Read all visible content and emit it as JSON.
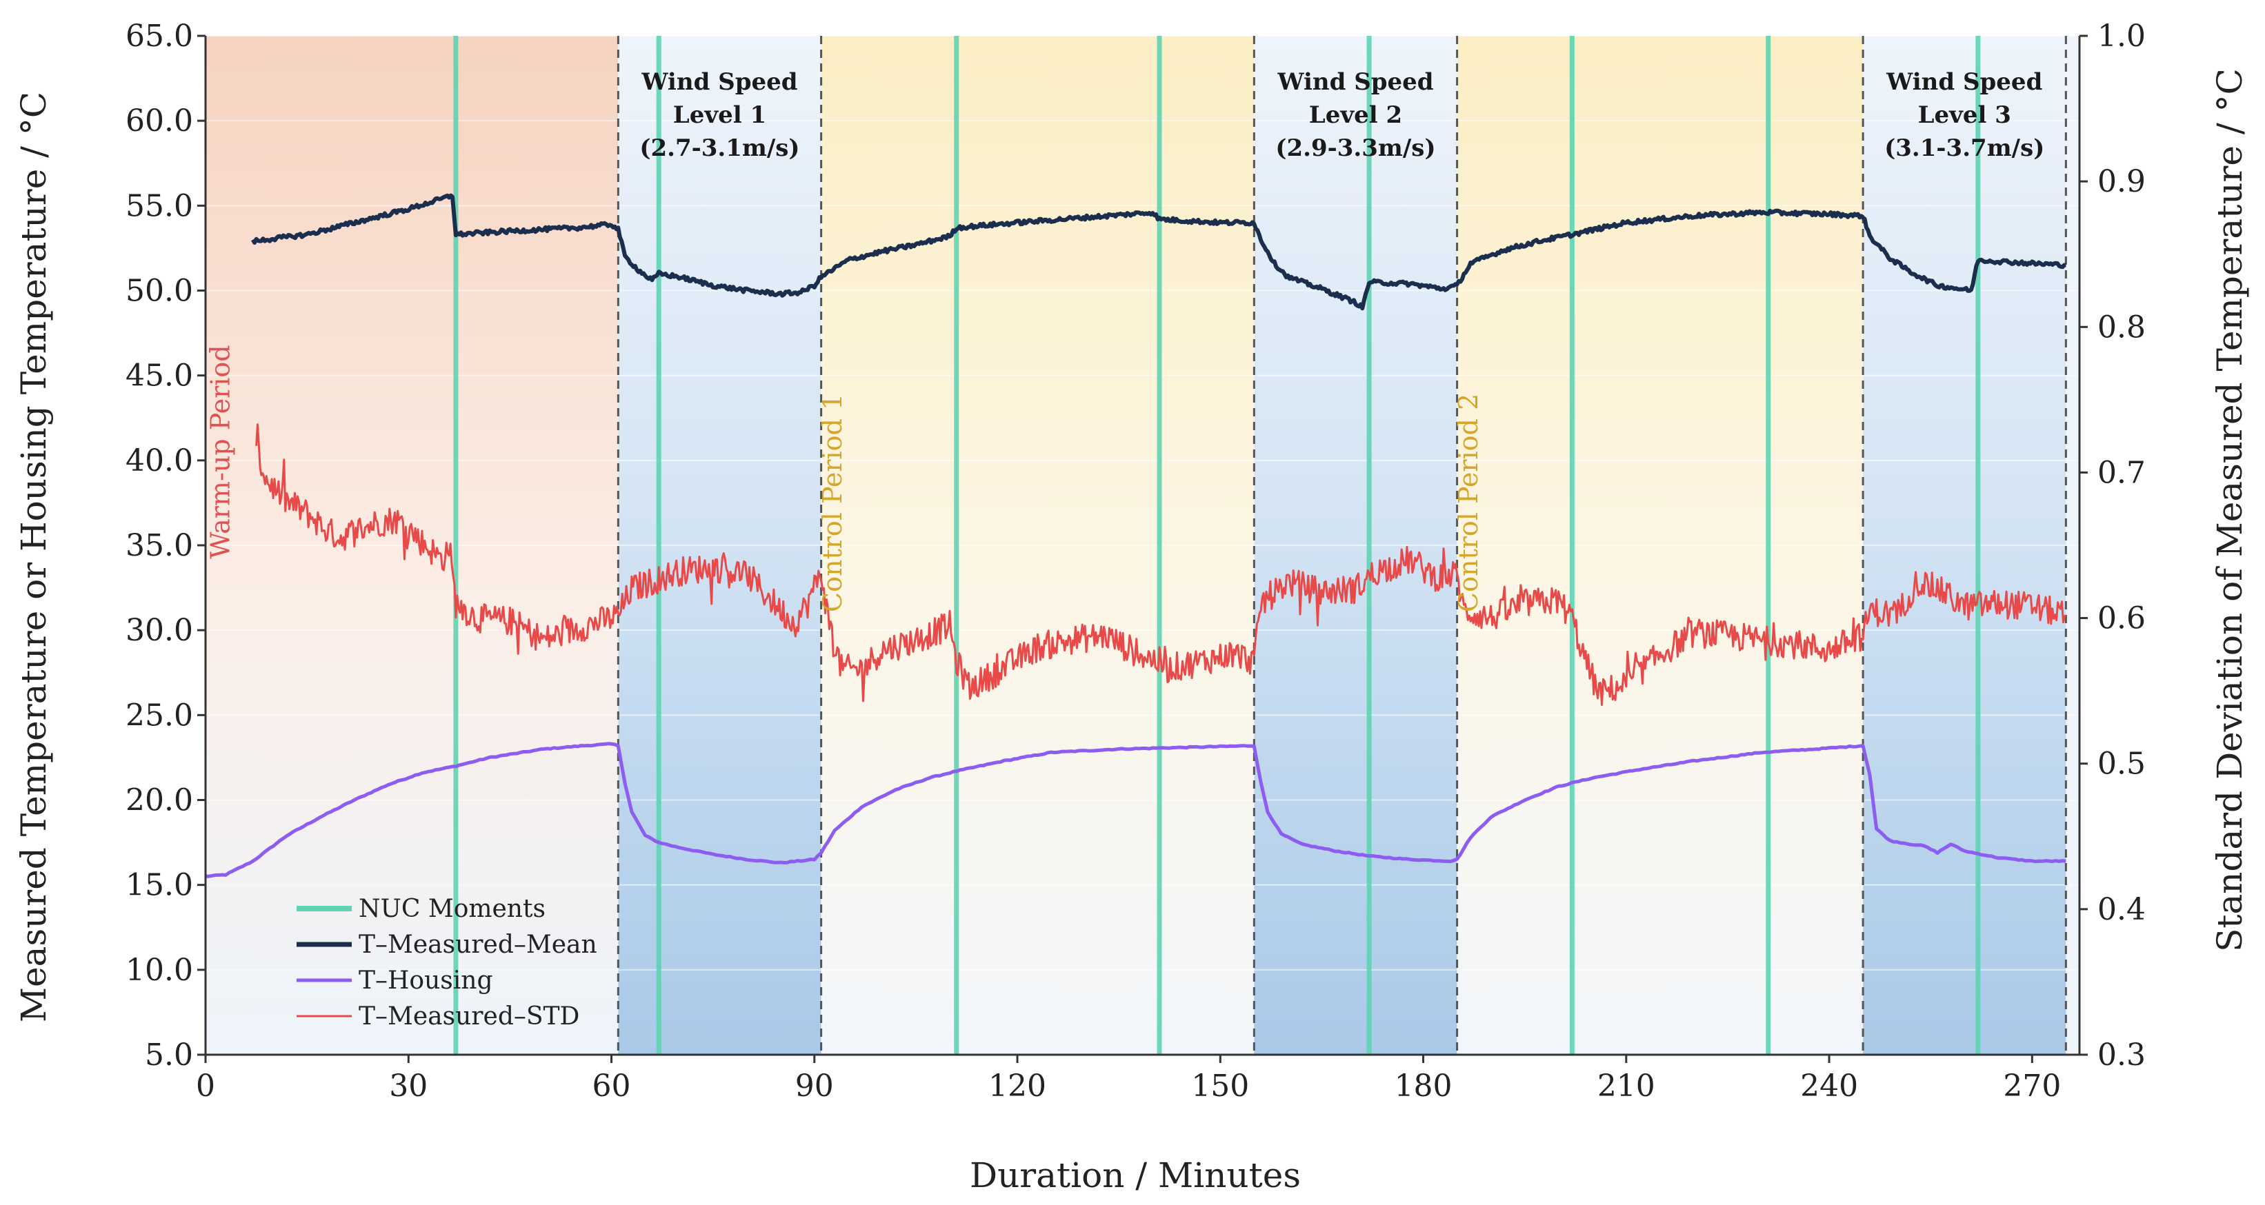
{
  "chart_data": {
    "type": "line",
    "xlabel": "Duration / Minutes",
    "ylabel_left": "Measured Temperature or Housing Temperature / °C",
    "ylabel_right": "Standard Deviation of Measured Temperature / °C",
    "xlim": [
      0,
      277
    ],
    "ylim_left": [
      5.0,
      65.0
    ],
    "ylim_right": [
      0.3,
      1.0
    ],
    "x_ticks": [
      "0",
      "30",
      "60",
      "90",
      "120",
      "150",
      "180",
      "210",
      "240",
      "270"
    ],
    "y_left_ticks": [
      "5.0",
      "10.0",
      "15.0",
      "20.0",
      "25.0",
      "30.0",
      "35.0",
      "40.0",
      "45.0",
      "50.0",
      "55.0",
      "60.0",
      "65.0"
    ],
    "y_right_ticks": [
      "0.3",
      "0.4",
      "0.5",
      "0.6",
      "0.7",
      "0.8",
      "0.9",
      "1.0"
    ],
    "regions": [
      {
        "kind": "warmup",
        "start": 0,
        "end": 61,
        "color": "#f7d9c8"
      },
      {
        "kind": "wind",
        "start": 61,
        "end": 91,
        "color": "#b7d2ea",
        "label_line1": "Wind Speed",
        "label_line2": "Level 1",
        "label_line3": "(2.7-3.1m/s)"
      },
      {
        "kind": "control",
        "start": 91,
        "end": 155,
        "color": "#fbefc4"
      },
      {
        "kind": "wind",
        "start": 155,
        "end": 185,
        "color": "#b7d2ea",
        "label_line1": "Wind Speed",
        "label_line2": "Level 2",
        "label_line3": "(2.9-3.3m/s)"
      },
      {
        "kind": "control",
        "start": 185,
        "end": 245,
        "color": "#fbefc4"
      },
      {
        "kind": "wind",
        "start": 245,
        "end": 275,
        "color": "#b7d2ea",
        "label_line1": "Wind Speed",
        "label_line2": "Level 3",
        "label_line3": "(3.1-3.7m/s)"
      }
    ],
    "boundaries": [
      61,
      91,
      155,
      185,
      245,
      275
    ],
    "period_labels": [
      {
        "text": "Warm-up Period",
        "x": 3.5,
        "y": 40.5,
        "color": "#e05252"
      },
      {
        "text": "Control Period 1",
        "x": 94,
        "y": 37.5,
        "color": "#d4a62a"
      },
      {
        "text": "Control Period 2",
        "x": 188,
        "y": 37.5,
        "color": "#d4a62a"
      }
    ],
    "nuc_moments": [
      37,
      67,
      111,
      141,
      172,
      202,
      231,
      262
    ],
    "series": [
      {
        "name": "NUC Moments",
        "axis": "left",
        "color": "#5fd3b3"
      },
      {
        "name": "T–Measured–Mean",
        "axis": "left",
        "color": "#1c2e4e",
        "points": [
          [
            7,
            52.9
          ],
          [
            15,
            53.3
          ],
          [
            25,
            54.3
          ],
          [
            30,
            54.8
          ],
          [
            36.5,
            55.6
          ],
          [
            37,
            53.3
          ],
          [
            45,
            53.5
          ],
          [
            55,
            53.7
          ],
          [
            60,
            53.9
          ],
          [
            61,
            53.6
          ],
          [
            62,
            52.0
          ],
          [
            64,
            51.2
          ],
          [
            66,
            50.6
          ],
          [
            67,
            51.0
          ],
          [
            70,
            50.8
          ],
          [
            75,
            50.3
          ],
          [
            80,
            50.0
          ],
          [
            85,
            49.8
          ],
          [
            88,
            49.9
          ],
          [
            90,
            50.3
          ],
          [
            91,
            50.8
          ],
          [
            95,
            51.8
          ],
          [
            100,
            52.3
          ],
          [
            105,
            52.7
          ],
          [
            110,
            53.2
          ],
          [
            111,
            53.7
          ],
          [
            120,
            54.0
          ],
          [
            130,
            54.3
          ],
          [
            140,
            54.6
          ],
          [
            141,
            54.2
          ],
          [
            150,
            54.0
          ],
          [
            155,
            54.0
          ],
          [
            156,
            53.0
          ],
          [
            158,
            51.6
          ],
          [
            160,
            50.8
          ],
          [
            165,
            50.1
          ],
          [
            170,
            49.3
          ],
          [
            171,
            49.0
          ],
          [
            172,
            50.5
          ],
          [
            178,
            50.4
          ],
          [
            183,
            50.1
          ],
          [
            185,
            50.3
          ],
          [
            187,
            51.6
          ],
          [
            192,
            52.4
          ],
          [
            197,
            52.9
          ],
          [
            202,
            53.3
          ],
          [
            210,
            54.0
          ],
          [
            220,
            54.4
          ],
          [
            230,
            54.6
          ],
          [
            231,
            54.6
          ],
          [
            240,
            54.5
          ],
          [
            245,
            54.4
          ],
          [
            246,
            53.2
          ],
          [
            249,
            51.9
          ],
          [
            252,
            51.1
          ],
          [
            256,
            50.3
          ],
          [
            261,
            50.0
          ],
          [
            262,
            51.8
          ],
          [
            270,
            51.6
          ],
          [
            275,
            51.5
          ]
        ]
      },
      {
        "name": "T–Housing",
        "axis": "left",
        "color": "#8d5cf0",
        "points": [
          [
            0,
            15.5
          ],
          [
            3,
            15.6
          ],
          [
            7,
            16.4
          ],
          [
            12,
            17.9
          ],
          [
            17,
            19.0
          ],
          [
            22,
            20.0
          ],
          [
            27,
            20.9
          ],
          [
            32,
            21.6
          ],
          [
            37,
            22.0
          ],
          [
            42,
            22.5
          ],
          [
            50,
            23.0
          ],
          [
            56,
            23.2
          ],
          [
            60,
            23.3
          ],
          [
            61,
            23.2
          ],
          [
            62,
            21.0
          ],
          [
            63,
            19.3
          ],
          [
            65,
            17.9
          ],
          [
            67,
            17.5
          ],
          [
            70,
            17.2
          ],
          [
            75,
            16.8
          ],
          [
            80,
            16.5
          ],
          [
            85,
            16.3
          ],
          [
            90,
            16.5
          ],
          [
            91,
            16.9
          ],
          [
            93,
            18.2
          ],
          [
            97,
            19.6
          ],
          [
            102,
            20.6
          ],
          [
            107,
            21.3
          ],
          [
            111,
            21.7
          ],
          [
            118,
            22.3
          ],
          [
            125,
            22.8
          ],
          [
            135,
            23.0
          ],
          [
            145,
            23.1
          ],
          [
            155,
            23.2
          ],
          [
            156,
            21.0
          ],
          [
            157,
            19.3
          ],
          [
            159,
            18.0
          ],
          [
            162,
            17.4
          ],
          [
            167,
            17.0
          ],
          [
            172,
            16.7
          ],
          [
            178,
            16.5
          ],
          [
            184,
            16.4
          ],
          [
            185,
            16.5
          ],
          [
            187,
            17.8
          ],
          [
            190,
            19.0
          ],
          [
            195,
            20.0
          ],
          [
            200,
            20.8
          ],
          [
            205,
            21.3
          ],
          [
            212,
            21.8
          ],
          [
            220,
            22.3
          ],
          [
            230,
            22.8
          ],
          [
            238,
            23.0
          ],
          [
            245,
            23.2
          ],
          [
            246,
            21.5
          ],
          [
            247,
            18.3
          ],
          [
            249,
            17.6
          ],
          [
            252,
            17.4
          ],
          [
            254,
            17.3
          ],
          [
            256,
            16.9
          ],
          [
            258,
            17.4
          ],
          [
            260,
            17.0
          ],
          [
            265,
            16.6
          ],
          [
            270,
            16.4
          ],
          [
            275,
            16.4
          ]
        ]
      },
      {
        "name": "T–Measured–STD",
        "axis": "right",
        "color": "#e84a4a",
        "points": [
          [
            7.5,
            0.715
          ],
          [
            9,
            0.695
          ],
          [
            12,
            0.68
          ],
          [
            15,
            0.672
          ],
          [
            18,
            0.66
          ],
          [
            20,
            0.655
          ],
          [
            22,
            0.66
          ],
          [
            25,
            0.665
          ],
          [
            28,
            0.668
          ],
          [
            30,
            0.662
          ],
          [
            32,
            0.652
          ],
          [
            35,
            0.64
          ],
          [
            36,
            0.65
          ],
          [
            37,
            0.61
          ],
          [
            40,
            0.6
          ],
          [
            45,
            0.598
          ],
          [
            50,
            0.585
          ],
          [
            55,
            0.593
          ],
          [
            60,
            0.6
          ],
          [
            61,
            0.602
          ],
          [
            63,
            0.62
          ],
          [
            66,
            0.625
          ],
          [
            70,
            0.632
          ],
          [
            75,
            0.635
          ],
          [
            80,
            0.63
          ],
          [
            82,
            0.62
          ],
          [
            87,
            0.596
          ],
          [
            89,
            0.61
          ],
          [
            91,
            0.632
          ],
          [
            92,
            0.6
          ],
          [
            94,
            0.565
          ],
          [
            97,
            0.565
          ],
          [
            100,
            0.578
          ],
          [
            105,
            0.585
          ],
          [
            110,
            0.595
          ],
          [
            111,
            0.57
          ],
          [
            113,
            0.552
          ],
          [
            118,
            0.566
          ],
          [
            123,
            0.58
          ],
          [
            128,
            0.585
          ],
          [
            133,
            0.588
          ],
          [
            138,
            0.575
          ],
          [
            141,
            0.57
          ],
          [
            142,
            0.565
          ],
          [
            147,
            0.57
          ],
          [
            152,
            0.576
          ],
          [
            155,
            0.57
          ],
          [
            156,
            0.61
          ],
          [
            160,
            0.625
          ],
          [
            165,
            0.618
          ],
          [
            170,
            0.62
          ],
          [
            173,
            0.632
          ],
          [
            178,
            0.64
          ],
          [
            182,
            0.628
          ],
          [
            185,
            0.63
          ],
          [
            186,
            0.605
          ],
          [
            190,
            0.6
          ],
          [
            195,
            0.61
          ],
          [
            200,
            0.612
          ],
          [
            202,
            0.6
          ],
          [
            204,
            0.57
          ],
          [
            206,
            0.548
          ],
          [
            210,
            0.555
          ],
          [
            215,
            0.575
          ],
          [
            220,
            0.59
          ],
          [
            225,
            0.588
          ],
          [
            230,
            0.585
          ],
          [
            235,
            0.582
          ],
          [
            240,
            0.578
          ],
          [
            245,
            0.588
          ],
          [
            246,
            0.605
          ],
          [
            250,
            0.602
          ],
          [
            253,
            0.625
          ],
          [
            256,
            0.62
          ],
          [
            260,
            0.608
          ],
          [
            265,
            0.61
          ],
          [
            270,
            0.608
          ],
          [
            275,
            0.602
          ]
        ]
      }
    ],
    "legend": {
      "placement": "bottom-left",
      "entries": [
        {
          "label": "NUC Moments",
          "color": "#5fd3b3"
        },
        {
          "label": "T–Measured–Mean",
          "color": "#1c2e4e"
        },
        {
          "label": "T–Housing",
          "color": "#8d5cf0"
        },
        {
          "label": "T–Measured–STD",
          "color": "#e84a4a"
        }
      ]
    }
  }
}
